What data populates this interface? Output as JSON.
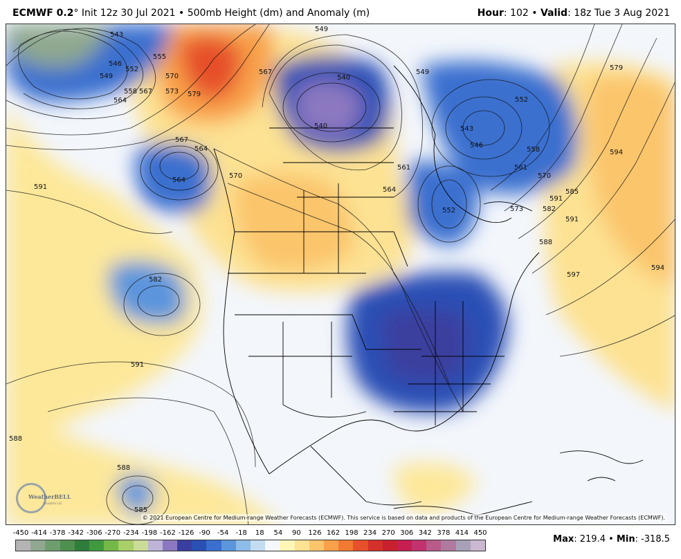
{
  "header": {
    "model": "ECMWF 0.2",
    "degree": "°",
    "init": " Init 12z 30 Jul 2021 • 500mb Height (dm) and Anomaly (m)",
    "hour_label": "Hour",
    "hour_value": ": 102 • ",
    "valid_label": "Valid",
    "valid_value": ": 18z Tue 3 Aug 2021"
  },
  "map": {
    "credit": "© 2021 European Centre for Medium-range Weather Forecasts (ECMWF). This service is based on data and products of the European Centre for Medium-range Weather Forecasts (ECMWF).",
    "logo_text": "WeatherBELL",
    "logo_subtext": "Analytics LLC",
    "contour_labels": [
      "543",
      "546",
      "549",
      "552",
      "555",
      "558",
      "564",
      "567",
      "570",
      "573",
      "579",
      "549",
      "567",
      "564",
      "540",
      "540",
      "546",
      "543",
      "549",
      "552",
      "558",
      "561",
      "570",
      "579",
      "567",
      "564",
      "561",
      "570",
      "591",
      "564",
      "552",
      "573",
      "582",
      "585",
      "588",
      "591",
      "594",
      "597",
      "594",
      "582",
      "591",
      "588",
      "588",
      "585",
      "591"
    ]
  },
  "legend": {
    "ticks": [
      "-450",
      "-414",
      "-378",
      "-342",
      "-306",
      "-270",
      "-234",
      "-198",
      "-162",
      "-126",
      "-90",
      "-54",
      "-18",
      "18",
      "54",
      "90",
      "126",
      "162",
      "198",
      "234",
      "270",
      "306",
      "342",
      "378",
      "414",
      "450"
    ],
    "colors": [
      "#b4b4b4",
      "#8fa88f",
      "#6e9e6e",
      "#4f8f4f",
      "#2f7d3a",
      "#3f9a3f",
      "#74b84a",
      "#a8cf6a",
      "#cbdc96",
      "#bdb4d8",
      "#8c78c0",
      "#3a3f9f",
      "#2a4fb5",
      "#3a6fcf",
      "#5b95dc",
      "#8dbce8",
      "#c4dcf2",
      "#f4f7fc",
      "#fff6b8",
      "#fde293",
      "#fbc56c",
      "#f8a04a",
      "#f17a32",
      "#e6502a",
      "#d4312a",
      "#c9202f",
      "#c61f52",
      "#c2326e",
      "#b85a8a",
      "#b07aa0",
      "#a8a0b8",
      "#c9b8d0"
    ],
    "max_label": "Max",
    "max_value": ": 219.4 • ",
    "min_label": "Min",
    "min_value": ": -318.5"
  }
}
